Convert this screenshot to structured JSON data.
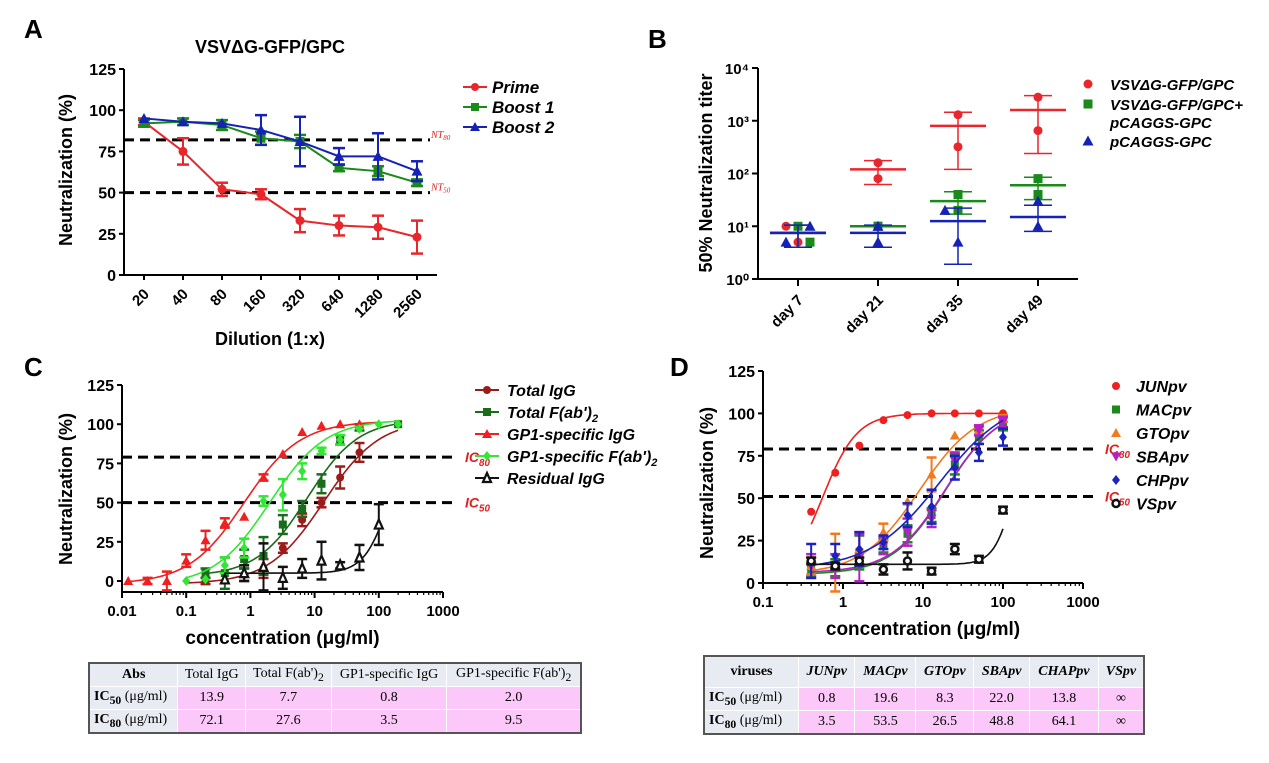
{
  "panels": {
    "A": "A",
    "B": "B",
    "C": "C",
    "D": "D"
  },
  "chart_data": [
    {
      "id": "A",
      "type": "line",
      "title": "VSVΔG-GFP/GPC",
      "xlabel": "Dilution (1:x)",
      "ylabel": "Neutralization (%)",
      "categories": [
        "20",
        "40",
        "80",
        "160",
        "320",
        "640",
        "1280",
        "2560"
      ],
      "ylim": [
        0,
        125
      ],
      "yticks": [
        0,
        25,
        50,
        75,
        100,
        125
      ],
      "reference_lines": [
        {
          "y": 82,
          "label": "NT80"
        },
        {
          "y": 50,
          "label": "NT50"
        }
      ],
      "series": [
        {
          "name": "Prime",
          "color": "#e8262b",
          "marker": "circle",
          "values": [
            93,
            75,
            52,
            49,
            33,
            30,
            29,
            23
          ],
          "err": [
            2,
            8,
            4,
            3,
            7,
            6,
            7,
            10
          ]
        },
        {
          "name": "Boost 1",
          "color": "#1a8a1a",
          "marker": "square",
          "values": [
            92,
            93,
            91,
            83,
            81,
            65,
            63,
            56
          ],
          "err": [
            2,
            2,
            3,
            4,
            4,
            2,
            3,
            2
          ]
        },
        {
          "name": "Boost 2",
          "color": "#1522b4",
          "marker": "triangle",
          "values": [
            95,
            93,
            92,
            88,
            81,
            72,
            72,
            63
          ],
          "err": [
            1,
            1,
            1,
            9,
            15,
            5,
            14,
            6
          ]
        }
      ],
      "legend": "right"
    },
    {
      "id": "B",
      "type": "scatter",
      "ylabel": "50% Neutralization titer",
      "yscale": "log",
      "ylim": [
        1,
        10000
      ],
      "yticks": [
        "10⁰",
        "10¹",
        "10²",
        "10³",
        "10⁴"
      ],
      "categories": [
        "day 7",
        "day 21",
        "day 35",
        "day 49"
      ],
      "series": [
        {
          "name": "VSVΔG-GFP/GPC",
          "color": "#e8262b",
          "marker": "circle",
          "points": [
            [
              10,
              5
            ],
            [
              160,
              80
            ],
            [
              1300,
              320
            ],
            [
              2800,
              650
            ]
          ],
          "mean": [
            7.5,
            120,
            800,
            1600
          ],
          "err_lo": [
            4,
            62,
            120,
            240
          ],
          "err_hi": [
            10.5,
            175,
            1450,
            3000
          ]
        },
        {
          "name": "VSVΔG-GFP/GPC+\npCAGGS-GPC",
          "color": "#1a8a1a",
          "marker": "square",
          "points": [
            [
              10,
              5
            ],
            [
              10,
              10
            ],
            [
              40,
              20
            ],
            [
              80,
              40
            ]
          ],
          "mean": [
            7.5,
            10,
            30,
            60
          ],
          "err_lo": [
            4,
            10,
            17,
            32
          ],
          "err_hi": [
            10.5,
            10,
            45,
            85
          ]
        },
        {
          "name": "pCAGGS-GPC",
          "color": "#1522b4",
          "marker": "triangle",
          "points": [
            [
              10,
              5
            ],
            [
              10,
              5
            ],
            [
              20,
              5
            ],
            [
              30,
              10
            ]
          ],
          "mean": [
            7.5,
            7.5,
            12.5,
            15
          ],
          "err_lo": [
            4,
            4,
            1.9,
            8
          ],
          "err_hi": [
            10.5,
            10.5,
            22,
            25
          ]
        }
      ],
      "legend": "right"
    },
    {
      "id": "C",
      "type": "line",
      "xlabel": "concentration (μg/ml)",
      "ylabel": "Neutralization (%)",
      "xscale": "log",
      "xlim": [
        0.01,
        1000
      ],
      "xticks": [
        "0.01",
        "0.1",
        "1",
        "10",
        "100",
        "1000"
      ],
      "ylim": [
        -5,
        125
      ],
      "yticks": [
        0,
        25,
        50,
        75,
        100,
        125
      ],
      "reference_lines": [
        {
          "y": 79,
          "label": "IC80"
        },
        {
          "y": 50,
          "label": "IC50"
        }
      ],
      "series": [
        {
          "name": "Total IgG",
          "color": "#9b1b1b",
          "marker": "circle",
          "ic50": 13.9,
          "x": [
            0.2,
            0.8,
            1.6,
            3.2,
            6.4,
            12.8,
            25,
            50,
            200
          ],
          "values": [
            0,
            4,
            8,
            21,
            39,
            50,
            66,
            82,
            100
          ],
          "err": [
            2,
            4,
            6,
            3,
            4,
            3,
            7,
            6,
            0
          ]
        },
        {
          "name": "Total F(ab')₂",
          "color": "#1a6b1a",
          "marker": "square",
          "ic50": 7.7,
          "x": [
            0.2,
            0.4,
            0.8,
            1.6,
            3.2,
            6.4,
            12.8,
            25,
            50,
            200
          ],
          "values": [
            5,
            5,
            14,
            16,
            36,
            46,
            62,
            90,
            98,
            100
          ],
          "err": [
            3,
            10,
            6,
            12,
            6,
            5,
            6,
            3,
            2,
            0
          ]
        },
        {
          "name": "GP1-specific IgG",
          "color": "#ee2020",
          "marker": "triangle",
          "ic50": 0.8,
          "x": [
            0.0125,
            0.025,
            0.05,
            0.1,
            0.2,
            0.4,
            0.8,
            1.6,
            3.2,
            6.4,
            12.8,
            25,
            50
          ],
          "values": [
            0,
            0,
            0,
            13,
            26,
            37,
            41,
            66,
            81,
            95,
            99,
            100,
            100
          ],
          "err": [
            0,
            2,
            6,
            4,
            6,
            3,
            0,
            2,
            0,
            0,
            0,
            0,
            0
          ]
        },
        {
          "name": "GP1-specific F(ab')₂",
          "color": "#33e633",
          "marker": "diamond",
          "ic50": 2.0,
          "x": [
            0.1,
            0.2,
            0.4,
            0.8,
            1.6,
            3.2,
            6.4,
            12.8,
            25,
            50,
            100,
            200
          ],
          "values": [
            0,
            1,
            10,
            21,
            51,
            55,
            70,
            83,
            90,
            97,
            100,
            100
          ],
          "err": [
            0,
            0,
            5,
            6,
            3,
            10,
            5,
            2,
            3,
            1,
            0,
            0
          ]
        },
        {
          "name": "Residual IgG",
          "color": "#111111",
          "marker": "triangle-open",
          "x": [
            0.4,
            0.8,
            1.6,
            3.2,
            6.4,
            12.8,
            25,
            50,
            100
          ],
          "values": [
            1,
            5,
            9,
            2,
            8,
            13,
            10,
            15,
            36
          ],
          "err": [
            1,
            5,
            15,
            7,
            6,
            12,
            2,
            8,
            13
          ]
        }
      ],
      "legend": "right"
    },
    {
      "id": "D",
      "type": "line",
      "xlabel": "concentration (μg/ml)",
      "ylabel": "Neutralization (%)",
      "xscale": "log",
      "xlim": [
        0.1,
        1000
      ],
      "xticks": [
        "0.1",
        "1",
        "10",
        "100",
        "1000"
      ],
      "ylim": [
        0,
        125
      ],
      "yticks": [
        0,
        25,
        50,
        75,
        100,
        125
      ],
      "reference_lines": [
        {
          "y": 79,
          "label": "IC80"
        },
        {
          "y": 51,
          "label": "IC50"
        }
      ],
      "series": [
        {
          "name": "JUNpv",
          "color": "#ee2020",
          "marker": "circle",
          "ic50": 0.8,
          "x": [
            0.4,
            0.8,
            1.6,
            3.2,
            6.4,
            12.8,
            25,
            50,
            100
          ],
          "values": [
            42,
            65,
            81,
            96,
            99,
            100,
            100,
            100,
            100
          ],
          "err": [
            0,
            0,
            0,
            0,
            0,
            0,
            0,
            0,
            0
          ]
        },
        {
          "name": "MACpv",
          "color": "#1a8a1a",
          "marker": "square",
          "ic50": 19.6,
          "x": [
            0.4,
            0.8,
            1.6,
            3.2,
            6.4,
            12.8,
            25,
            50,
            100
          ],
          "values": [
            8,
            9,
            18,
            22,
            29,
            40,
            70,
            86,
            94
          ],
          "err": [
            4,
            5,
            10,
            4,
            5,
            4,
            6,
            4,
            4
          ]
        },
        {
          "name": "GTOpv",
          "color": "#f07a1e",
          "marker": "triangle",
          "ic50": 8.3,
          "x": [
            0.4,
            0.8,
            1.6,
            3.2,
            6.4,
            12.8,
            25,
            50,
            100
          ],
          "values": [
            10,
            12,
            20,
            30,
            48,
            64,
            87,
            90,
            97
          ],
          "err": [
            5,
            17,
            10,
            5,
            0,
            10,
            0,
            2,
            2
          ]
        },
        {
          "name": "SBApv",
          "color": "#b81ec8",
          "marker": "triangle-down",
          "ic50": 22.0,
          "x": [
            0.4,
            0.8,
            1.6,
            3.2,
            6.4,
            12.8,
            25,
            50,
            100
          ],
          "values": [
            10,
            10,
            15,
            22,
            30,
            38,
            72,
            90,
            95
          ],
          "err": [
            7,
            7,
            14,
            5,
            8,
            5,
            5,
            3,
            3
          ]
        },
        {
          "name": "CHPpv",
          "color": "#1a22c0",
          "marker": "diamond",
          "ic50": 13.8,
          "x": [
            0.4,
            0.8,
            1.6,
            3.2,
            6.4,
            12.8,
            25,
            50,
            100
          ],
          "values": [
            13,
            16,
            20,
            24,
            40,
            45,
            68,
            77,
            86
          ],
          "err": [
            10,
            7,
            10,
            4,
            7,
            10,
            7,
            5,
            5
          ]
        },
        {
          "name": "VSpv",
          "color": "#111111",
          "marker": "circle-open",
          "x": [
            0.4,
            0.8,
            1.6,
            3.2,
            6.4,
            12.8,
            25,
            50,
            100
          ],
          "values": [
            13,
            10,
            13,
            8,
            13,
            7,
            20,
            14,
            43
          ],
          "err": [
            2,
            2,
            2,
            3,
            5,
            2,
            3,
            2,
            2
          ]
        }
      ],
      "legend": "right"
    }
  ],
  "tableC": {
    "header": [
      "Abs",
      "Total IgG",
      "Total F(ab')",
      "GP1-specific IgG",
      "GP1-specific F(ab')"
    ],
    "sub": "2",
    "rows": [
      {
        "label": "IC",
        "sub": "50",
        "unit": " (μg/ml)",
        "values": [
          "13.9",
          "7.7",
          "0.8",
          "2.0"
        ]
      },
      {
        "label": "IC",
        "sub": "80",
        "unit": " (μg/ml)",
        "values": [
          "72.1",
          "27.6",
          "3.5",
          "9.5"
        ]
      }
    ]
  },
  "tableD": {
    "header": [
      "viruses",
      "JUNpv",
      "MACpv",
      "GTOpv",
      "SBApv",
      "CHAPpv",
      "VSpv"
    ],
    "rows": [
      {
        "label": "IC",
        "sub": "50",
        "unit": " (μg/ml)",
        "values": [
          "0.8",
          "19.6",
          "8.3",
          "22.0",
          "13.8",
          "∞"
        ]
      },
      {
        "label": "IC",
        "sub": "80",
        "unit": " (μg/ml)",
        "values": [
          "3.5",
          "53.5",
          "26.5",
          "48.8",
          "64.1",
          "∞"
        ]
      }
    ]
  }
}
